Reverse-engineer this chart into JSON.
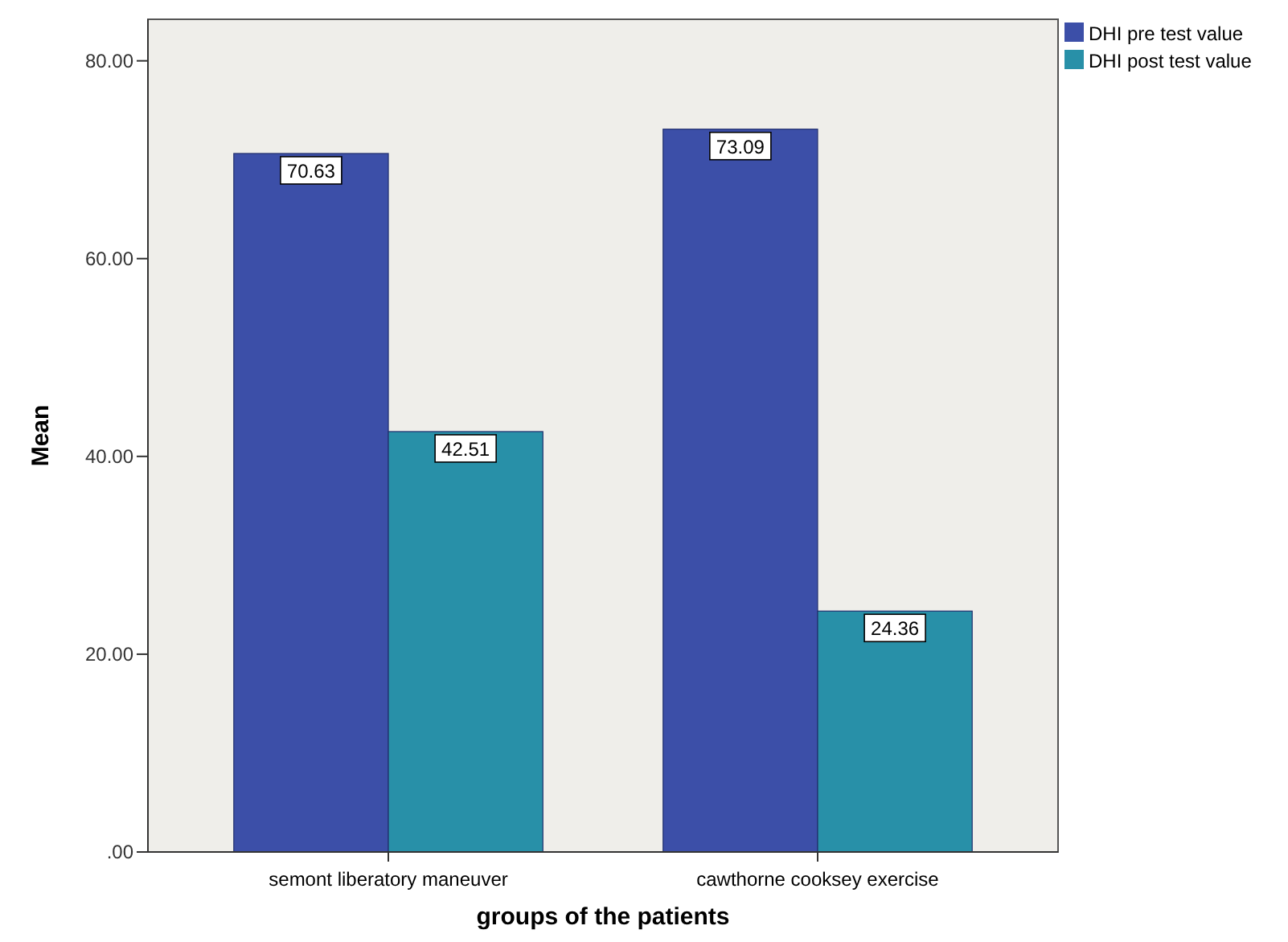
{
  "chart_data": {
    "type": "bar",
    "xlabel": "groups of the patients",
    "ylabel": "Mean",
    "categories": [
      "semont liberatory maneuver",
      "cawthorne cooksey exercise"
    ],
    "series": [
      {
        "name": "DHI pre test value",
        "color": "#3c4fa8",
        "values": [
          70.63,
          73.09
        ]
      },
      {
        "name": "DHI post test value",
        "color": "#2890a8",
        "values": [
          42.51,
          24.36
        ]
      }
    ],
    "ylim": [
      0,
      84.2
    ],
    "yticks": [
      {
        "value": 0,
        "label": ".00"
      },
      {
        "value": 20,
        "label": "20.00"
      },
      {
        "value": 40,
        "label": "40.00"
      },
      {
        "value": 60,
        "label": "60.00"
      },
      {
        "value": 80,
        "label": "80.00"
      }
    ],
    "data_labels": true,
    "legend": "top right",
    "grid": false
  }
}
